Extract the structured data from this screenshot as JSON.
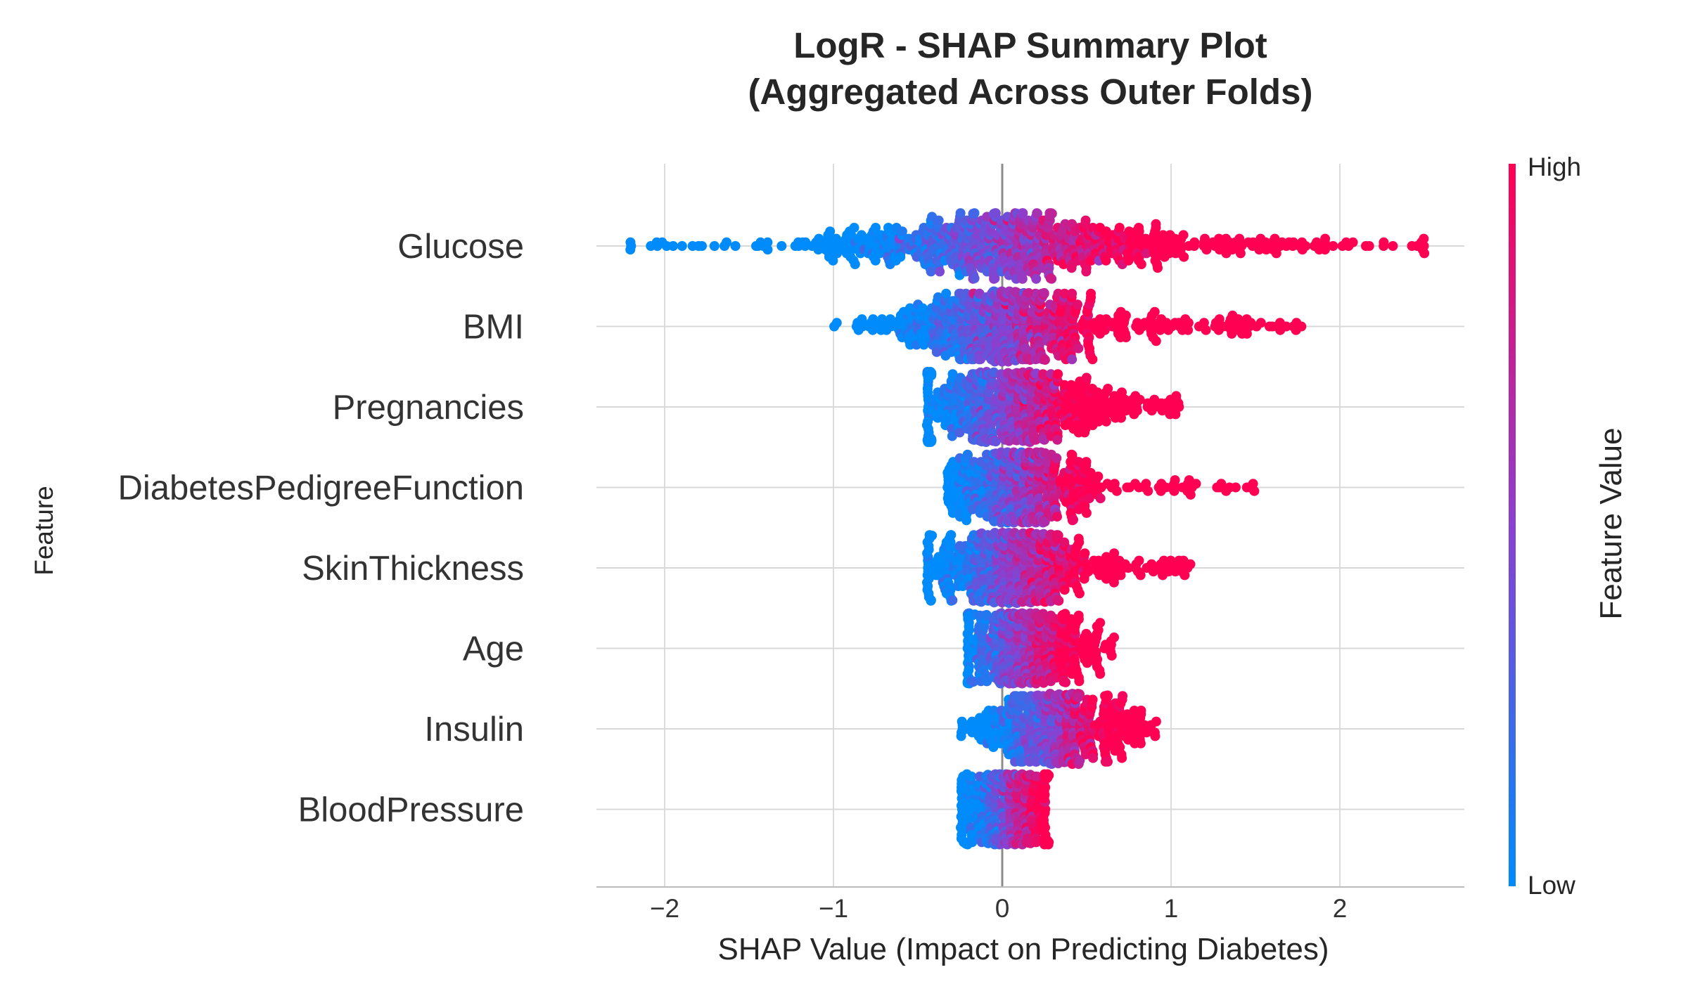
{
  "chart_data": {
    "type": "scatter",
    "subtype": "shap-beeswarm",
    "title_line1": "LogR - SHAP Summary Plot",
    "title_line2": "(Aggregated Across Outer Folds)",
    "xlabel": "SHAP Value (Impact on Predicting Diabetes)",
    "ylabel": "Feature",
    "xlim": [
      -2.4,
      2.7
    ],
    "xticks": [
      {
        "value": -2,
        "label": "−2"
      },
      {
        "value": -1,
        "label": "−1"
      },
      {
        "value": 0,
        "label": "0"
      },
      {
        "value": 1,
        "label": "1"
      },
      {
        "value": 2,
        "label": "2"
      }
    ],
    "grid": true,
    "colorbar": {
      "title": "Feature Value",
      "high_label": "High",
      "low_label": "Low",
      "low_color": "#008bfb",
      "mid_color": "#8a40d0",
      "high_color": "#ff0052"
    },
    "features": [
      {
        "name": "Glucose",
        "min": -2.2,
        "max": 2.5,
        "core": [
          -0.9,
          0.9
        ],
        "spread": 0.25,
        "count": 700,
        "slope": 1.6
      },
      {
        "name": "BMI",
        "min": -1.0,
        "max": 1.77,
        "core": [
          -0.5,
          0.5
        ],
        "spread": 0.2,
        "count": 650,
        "slope": 2.2
      },
      {
        "name": "Pregnancies",
        "min": -0.44,
        "max": 1.05,
        "core": [
          -0.42,
          0.45
        ],
        "spread": 0.15,
        "count": 600,
        "slope": 3.0
      },
      {
        "name": "DiabetesPedigreeFunction",
        "min": -0.32,
        "max": 1.49,
        "core": [
          -0.2,
          0.4
        ],
        "spread": 0.12,
        "count": 550,
        "slope": 3.5
      },
      {
        "name": "SkinThickness",
        "min": -0.44,
        "max": 1.12,
        "core": [
          -0.3,
          0.4
        ],
        "spread": 0.15,
        "count": 550,
        "slope": 3.0
      },
      {
        "name": "Age",
        "min": -0.2,
        "max": 0.66,
        "core": [
          -0.2,
          0.35
        ],
        "spread": 0.1,
        "count": 500,
        "slope": 4.0
      },
      {
        "name": "Insulin",
        "min": -0.24,
        "max": 0.91,
        "core": [
          -0.05,
          0.6
        ],
        "spread": 0.06,
        "count": 450,
        "slope": 4.0
      },
      {
        "name": "BloodPressure",
        "min": -0.24,
        "max": 0.27,
        "core": [
          -0.2,
          0.25
        ],
        "spread": 0.04,
        "count": 450,
        "slope": 6.0
      }
    ]
  }
}
